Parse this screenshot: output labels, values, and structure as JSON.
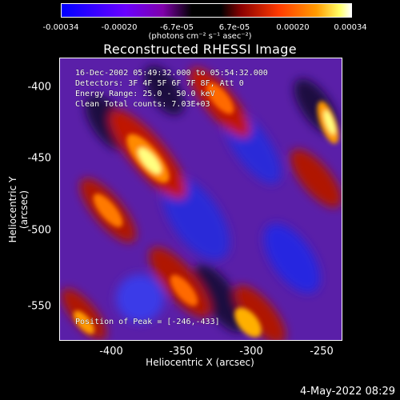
{
  "colorbar": {
    "ticks": [
      "-0.00034",
      "-0.00020",
      "-6.7e-05",
      "6.7e-05",
      "0.00020",
      "0.00034"
    ],
    "units": "(photons cm⁻² s⁻¹ asec⁻²)"
  },
  "title": "Reconstructed RHESSI Image",
  "info": {
    "time_range": "16-Dec-2002 05:49:32.000 to 05:54:32.000",
    "detectors": "Detectors: 3F 4F 5F 6F 7F 8F, Att 0",
    "energy_range": "Energy Range: 25.0 - 50.0 keV",
    "clean": "Clean     Total counts: 7.03E+03",
    "peak": "Position of Peak = [-246,-433]"
  },
  "axes": {
    "xlabel": "Heliocentric X (arcsec)",
    "ylabel": "Heliocentric Y (arcsec)",
    "xticks": [
      "-400",
      "-350",
      "-300",
      "-250"
    ],
    "yticks": [
      "-400",
      "-450",
      "-500",
      "-550"
    ]
  },
  "datestamp": "4-May-2022 08:29",
  "colors": {
    "background": "#000000",
    "text": "#ffffff"
  }
}
